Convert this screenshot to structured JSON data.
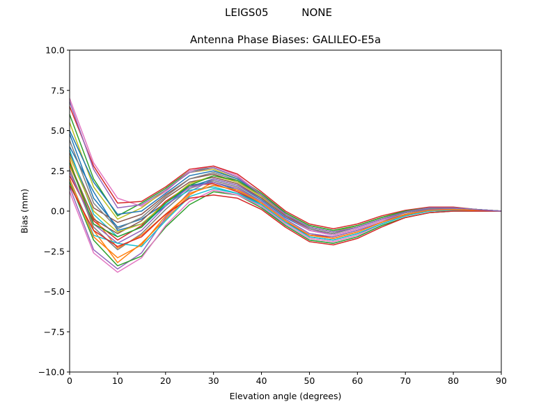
{
  "suptitle": "LEIGS05          NONE",
  "chart_data": {
    "type": "line",
    "title": "Antenna Phase Biases: GALILEO-E5a",
    "xlabel": "Elevation angle (degrees)",
    "ylabel": "Bias (mm)",
    "xlim": [
      0,
      90
    ],
    "ylim": [
      -10.0,
      10.0
    ],
    "xticks": [
      0,
      10,
      20,
      30,
      40,
      50,
      60,
      70,
      80,
      90
    ],
    "xtick_labels": [
      "0",
      "10",
      "20",
      "30",
      "40",
      "50",
      "60",
      "70",
      "80",
      "90"
    ],
    "yticks": [
      -10.0,
      -7.5,
      -5.0,
      -2.5,
      0.0,
      2.5,
      5.0,
      7.5,
      10.0
    ],
    "ytick_labels": [
      "−10.0",
      "−7.5",
      "−5.0",
      "−2.5",
      "0.0",
      "2.5",
      "5.0",
      "7.5",
      "10.0"
    ],
    "grid": false,
    "legend": "none",
    "x": [
      0,
      5,
      10,
      15,
      20,
      25,
      30,
      35,
      40,
      45,
      50,
      55,
      60,
      65,
      70,
      75,
      80,
      85,
      90
    ],
    "series": [
      {
        "color": "#1f77b4",
        "values": [
          4.8,
          0.8,
          -1.0,
          -0.5,
          0.5,
          1.5,
          2.0,
          1.6,
          0.7,
          -0.4,
          -1.2,
          -1.5,
          -1.1,
          -0.6,
          -0.2,
          0.05,
          0.1,
          0.05,
          0.0
        ]
      },
      {
        "color": "#ff7f0e",
        "values": [
          3.2,
          -1.2,
          -3.2,
          -2.0,
          -0.5,
          1.0,
          1.8,
          1.4,
          0.5,
          -0.6,
          -1.6,
          -1.8,
          -1.4,
          -0.8,
          -0.3,
          0.0,
          0.1,
          0.05,
          0.0
        ]
      },
      {
        "color": "#2ca02c",
        "values": [
          6.0,
          2.0,
          -0.3,
          0.5,
          1.4,
          2.5,
          2.7,
          2.1,
          1.1,
          -0.1,
          -0.9,
          -1.2,
          -0.9,
          -0.4,
          0.0,
          0.2,
          0.2,
          0.1,
          0.0
        ]
      },
      {
        "color": "#d62728",
        "values": [
          2.2,
          -0.6,
          -1.8,
          -0.9,
          0.6,
          1.6,
          1.7,
          1.2,
          0.4,
          -0.7,
          -1.5,
          -1.6,
          -1.2,
          -0.7,
          -0.2,
          0.1,
          0.1,
          0.05,
          0.0
        ]
      },
      {
        "color": "#9467bd",
        "values": [
          1.5,
          -2.4,
          -3.6,
          -2.6,
          -0.4,
          1.2,
          2.0,
          1.6,
          0.8,
          -0.3,
          -1.2,
          -1.4,
          -1.0,
          -0.5,
          -0.1,
          0.15,
          0.2,
          0.1,
          0.0
        ]
      },
      {
        "color": "#8c564b",
        "values": [
          3.6,
          0.2,
          -0.7,
          -0.2,
          1.0,
          2.0,
          2.3,
          1.8,
          0.9,
          -0.2,
          -1.0,
          -1.3,
          -1.0,
          -0.5,
          -0.1,
          0.15,
          0.2,
          0.1,
          0.0
        ]
      },
      {
        "color": "#e377c2",
        "values": [
          7.0,
          3.0,
          0.8,
          0.3,
          1.2,
          2.5,
          2.8,
          2.2,
          1.0,
          -0.3,
          -1.2,
          -1.5,
          -1.1,
          -0.6,
          -0.1,
          0.2,
          0.2,
          0.1,
          0.0
        ]
      },
      {
        "color": "#7f7f7f",
        "values": [
          2.6,
          -1.0,
          -2.4,
          -1.4,
          0.1,
          1.4,
          1.9,
          1.5,
          0.6,
          -0.5,
          -1.4,
          -1.6,
          -1.2,
          -0.7,
          -0.2,
          0.1,
          0.15,
          0.05,
          0.0
        ]
      },
      {
        "color": "#bcbd22",
        "values": [
          5.5,
          1.5,
          -0.5,
          0.2,
          1.3,
          2.4,
          2.6,
          2.0,
          1.0,
          -0.2,
          -1.0,
          -1.3,
          -1.0,
          -0.5,
          -0.05,
          0.2,
          0.2,
          0.1,
          0.0
        ]
      },
      {
        "color": "#17becf",
        "values": [
          3.8,
          -0.2,
          -1.6,
          -1.0,
          0.4,
          1.3,
          1.5,
          1.1,
          0.3,
          -0.9,
          -1.8,
          -2.0,
          -1.6,
          -0.9,
          -0.4,
          -0.1,
          0.0,
          0.0,
          0.0
        ]
      },
      {
        "color": "#1f77b4",
        "values": [
          4.0,
          1.2,
          -1.2,
          -0.8,
          0.3,
          1.6,
          1.8,
          1.3,
          0.4,
          -0.7,
          -1.6,
          -1.8,
          -1.4,
          -0.8,
          -0.3,
          0.0,
          0.1,
          0.05,
          0.0
        ]
      },
      {
        "color": "#ff7f0e",
        "values": [
          2.8,
          -0.4,
          -2.3,
          -1.5,
          -0.2,
          1.1,
          1.6,
          1.3,
          0.5,
          -0.6,
          -1.5,
          -1.7,
          -1.3,
          -0.7,
          -0.25,
          0.05,
          0.1,
          0.05,
          0.0
        ]
      },
      {
        "color": "#2ca02c",
        "values": [
          1.8,
          -1.8,
          -3.4,
          -2.8,
          -1.0,
          0.4,
          1.2,
          1.0,
          0.2,
          -0.9,
          -1.8,
          -2.0,
          -1.6,
          -0.9,
          -0.4,
          -0.1,
          0.0,
          0.0,
          0.0
        ]
      },
      {
        "color": "#d62728",
        "values": [
          6.5,
          2.8,
          0.5,
          0.6,
          1.5,
          2.6,
          2.8,
          2.3,
          1.2,
          0.0,
          -0.8,
          -1.1,
          -0.8,
          -0.3,
          0.05,
          0.25,
          0.25,
          0.1,
          0.0
        ]
      },
      {
        "color": "#9467bd",
        "values": [
          2.4,
          -0.8,
          -2.0,
          -1.2,
          0.3,
          1.5,
          1.8,
          1.4,
          0.6,
          -0.5,
          -1.4,
          -1.6,
          -1.2,
          -0.7,
          -0.2,
          0.1,
          0.15,
          0.05,
          0.0
        ]
      },
      {
        "color": "#8c564b",
        "values": [
          3.0,
          -0.5,
          -1.4,
          -0.6,
          0.8,
          1.8,
          2.1,
          1.7,
          0.8,
          -0.3,
          -1.1,
          -1.4,
          -1.0,
          -0.5,
          -0.1,
          0.15,
          0.2,
          0.1,
          0.0
        ]
      },
      {
        "color": "#e377c2",
        "values": [
          1.2,
          -2.6,
          -3.8,
          -2.9,
          -0.9,
          0.6,
          1.3,
          1.0,
          0.3,
          -0.8,
          -1.7,
          -1.9,
          -1.5,
          -0.8,
          -0.3,
          0.0,
          0.05,
          0.0,
          0.0
        ]
      },
      {
        "color": "#7f7f7f",
        "values": [
          4.4,
          0.5,
          -1.1,
          -0.4,
          0.9,
          2.0,
          2.4,
          1.9,
          0.9,
          -0.2,
          -1.1,
          -1.4,
          -1.0,
          -0.5,
          -0.1,
          0.15,
          0.2,
          0.1,
          0.0
        ]
      },
      {
        "color": "#bcbd22",
        "values": [
          3.4,
          0.0,
          -1.3,
          -0.8,
          0.5,
          1.7,
          2.2,
          1.8,
          0.9,
          -0.2,
          -1.0,
          -1.3,
          -0.9,
          -0.4,
          0.0,
          0.2,
          0.2,
          0.1,
          0.0
        ]
      },
      {
        "color": "#17becf",
        "values": [
          2.0,
          -1.5,
          -2.0,
          -2.2,
          -0.6,
          0.9,
          1.4,
          1.1,
          0.4,
          -0.7,
          -1.6,
          -1.8,
          -1.4,
          -0.8,
          -0.3,
          0.0,
          0.05,
          0.0,
          0.0
        ]
      },
      {
        "color": "#1f77b4",
        "values": [
          5.0,
          1.8,
          -0.2,
          0.0,
          1.1,
          2.2,
          2.5,
          2.0,
          1.0,
          -0.2,
          -1.0,
          -1.3,
          -1.0,
          -0.5,
          -0.05,
          0.2,
          0.2,
          0.1,
          0.0
        ]
      },
      {
        "color": "#ff7f0e",
        "values": [
          2.0,
          -1.6,
          -2.9,
          -2.1,
          -0.3,
          1.1,
          1.6,
          1.3,
          0.5,
          -0.6,
          -1.5,
          -1.7,
          -1.3,
          -0.7,
          -0.2,
          0.05,
          0.1,
          0.05,
          0.0
        ]
      },
      {
        "color": "#2ca02c",
        "values": [
          3.0,
          -0.8,
          -1.6,
          -1.0,
          0.5,
          1.6,
          2.2,
          1.9,
          1.0,
          -0.1,
          -0.9,
          -1.2,
          -0.9,
          -0.4,
          0.0,
          0.2,
          0.2,
          0.1,
          0.0
        ]
      },
      {
        "color": "#d62728",
        "values": [
          1.6,
          -1.2,
          -2.2,
          -1.6,
          -0.2,
          0.8,
          1.0,
          0.8,
          0.1,
          -1.0,
          -1.9,
          -2.1,
          -1.7,
          -1.0,
          -0.4,
          -0.1,
          0.0,
          0.0,
          0.0
        ]
      },
      {
        "color": "#9467bd",
        "values": [
          6.8,
          2.6,
          0.2,
          0.4,
          1.3,
          2.4,
          2.7,
          2.1,
          1.0,
          -0.2,
          -1.0,
          -1.3,
          -1.0,
          -0.5,
          -0.05,
          0.2,
          0.2,
          0.1,
          0.0
        ]
      }
    ]
  }
}
